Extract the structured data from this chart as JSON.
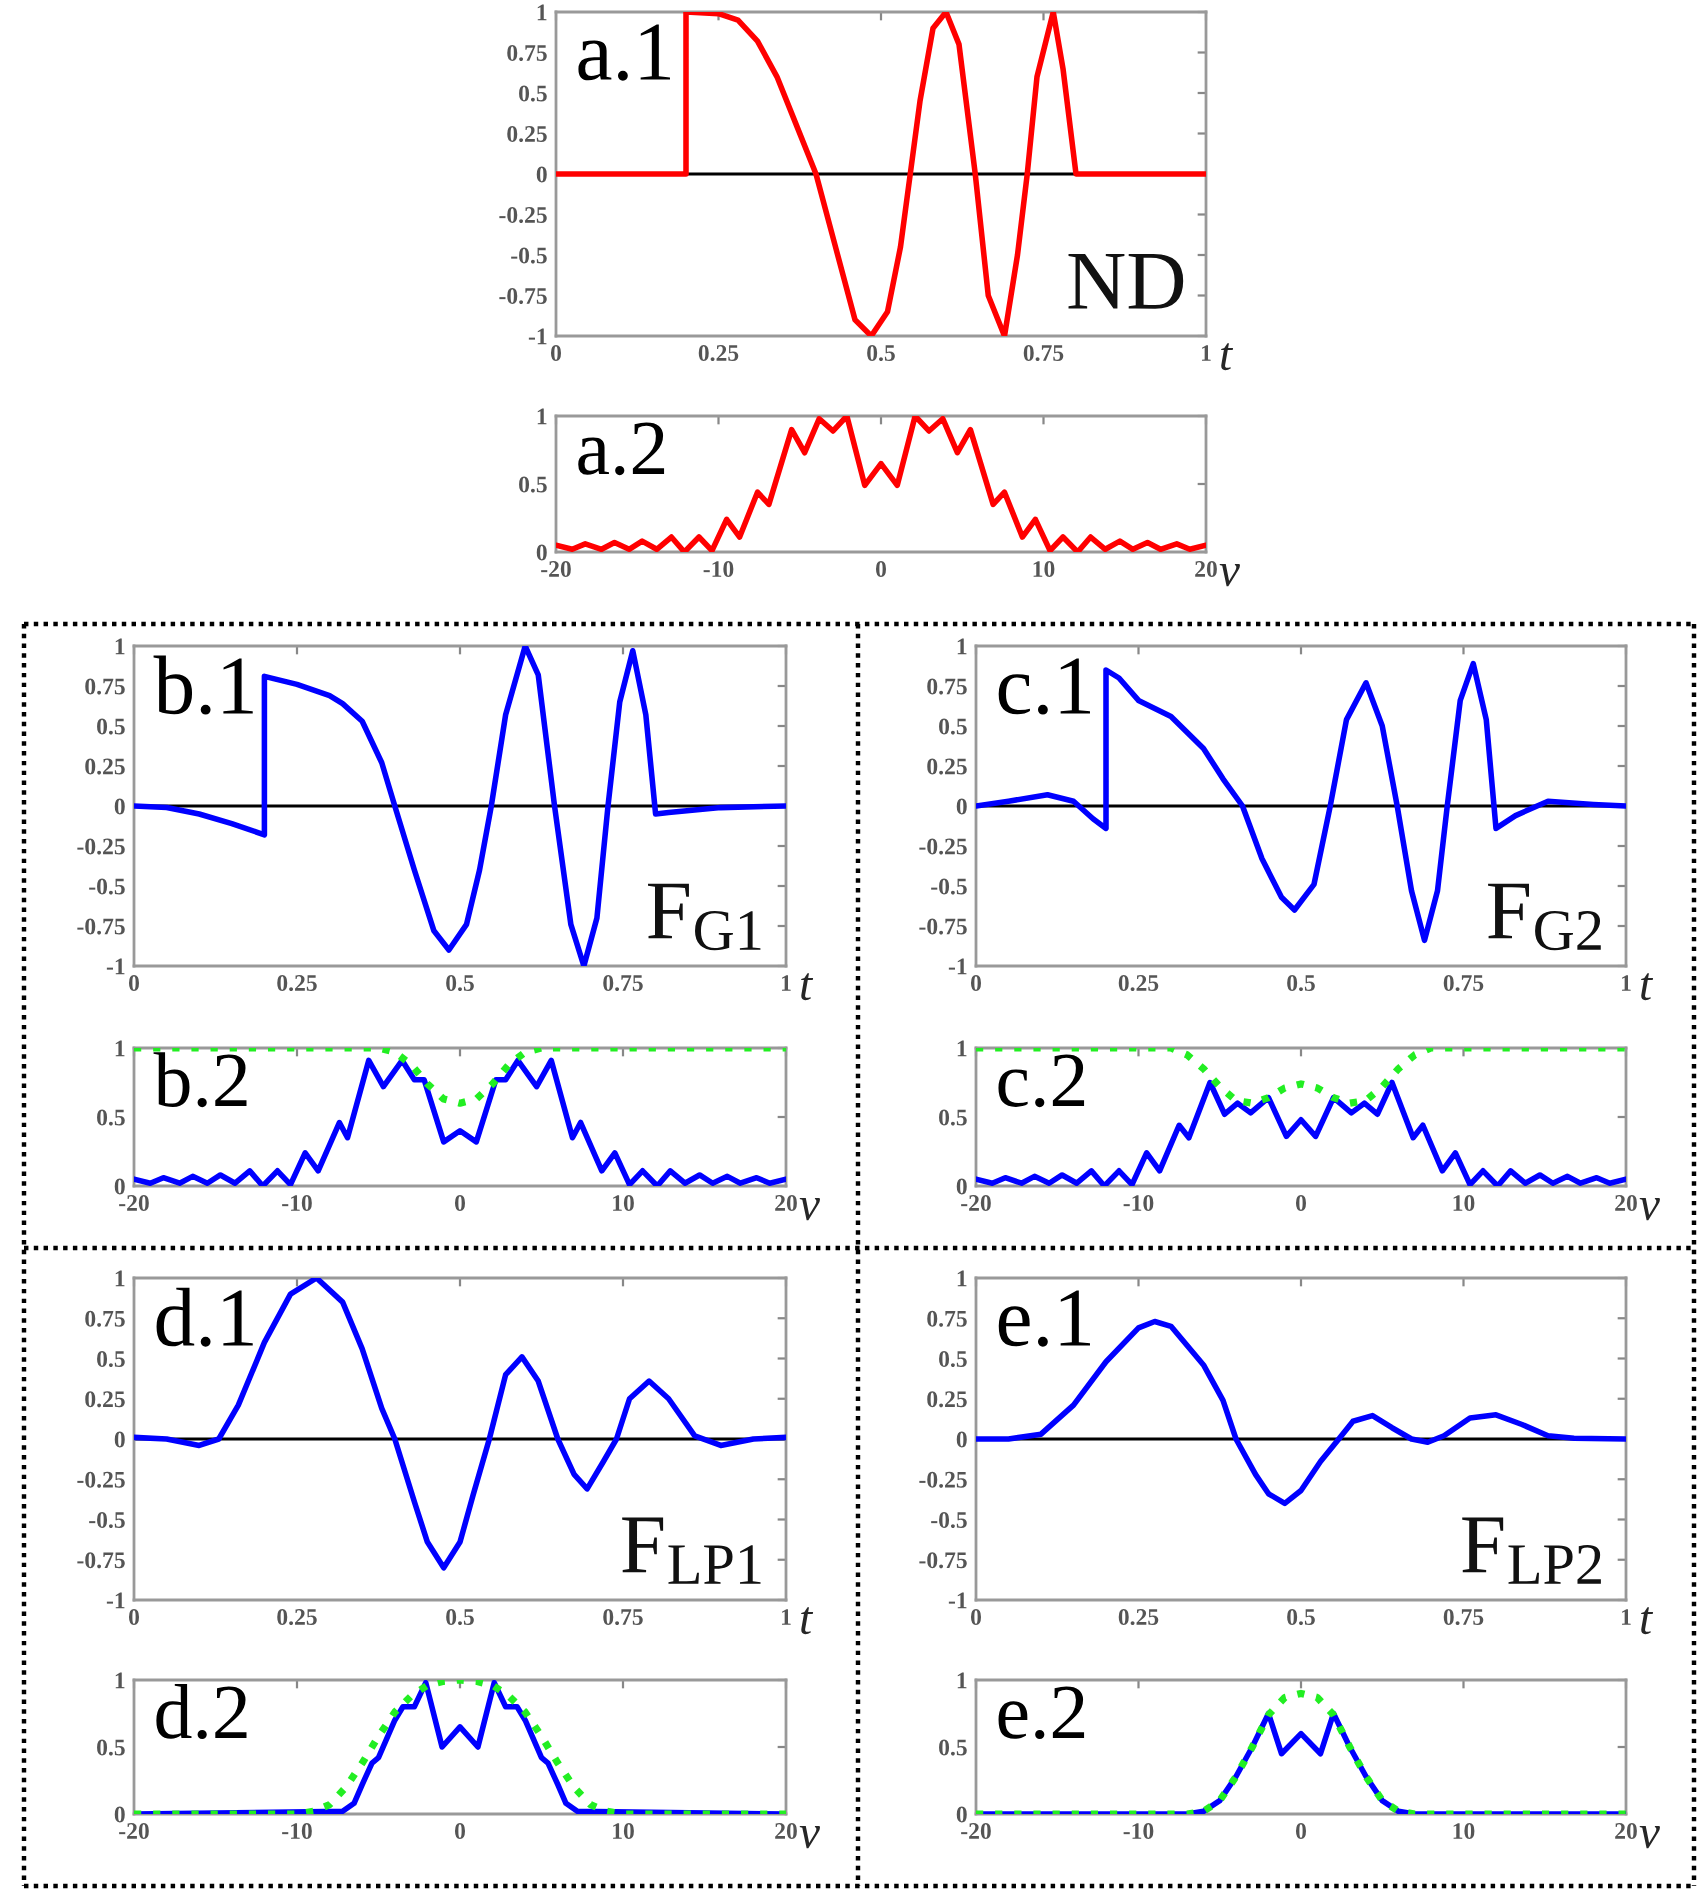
{
  "chart_data": [
    {
      "type": "line",
      "annotations": [
        "a.1",
        "ND"
      ],
      "xlabel": "t",
      "xlim": [
        0,
        1
      ],
      "ylim": [
        -1,
        1
      ],
      "xticks": [
        0,
        0.25,
        0.5,
        0.75,
        1
      ],
      "yticks": [
        -1,
        -0.75,
        -0.5,
        -0.25,
        0,
        0.25,
        0.5,
        0.75,
        1
      ],
      "ref_lines": [
        {
          "axis": "y",
          "value": 0,
          "color": "#000000"
        }
      ],
      "series": [
        {
          "color": "#ff0000",
          "line_style": "solid",
          "x": [
            0,
            0.2,
            0.2,
            0.25,
            0.28,
            0.31,
            0.34,
            0.37,
            0.4,
            0.43,
            0.46,
            0.485,
            0.51,
            0.53,
            0.545,
            0.56,
            0.58,
            0.6,
            0.62,
            0.645,
            0.665,
            0.69,
            0.71,
            0.725,
            0.74,
            0.765,
            0.78,
            0.8,
            1
          ],
          "values": [
            0,
            0,
            1,
            0.99,
            0.95,
            0.82,
            0.6,
            0.3,
            0,
            -0.45,
            -0.9,
            -1,
            -0.85,
            -0.45,
            0,
            0.45,
            0.9,
            1,
            0.8,
            0,
            -0.75,
            -1,
            -0.5,
            0,
            0.6,
            1,
            0.65,
            0,
            0
          ]
        }
      ]
    },
    {
      "type": "line",
      "annotations": [
        "a.2"
      ],
      "xlabel": "ν",
      "xlim": [
        -20,
        20
      ],
      "ylim": [
        0,
        1
      ],
      "xticks": [
        -20,
        -10,
        0,
        10,
        20
      ],
      "yticks": [
        0,
        0.5,
        1
      ],
      "series": [
        {
          "color": "#ff0000",
          "line_style": "solid",
          "x": [
            -20,
            -19,
            -18.2,
            -17.2,
            -16.4,
            -15.5,
            -14.7,
            -13.8,
            -12.9,
            -12.1,
            -11.2,
            -10.4,
            -9.5,
            -8.7,
            -7.6,
            -6.9,
            -5.5,
            -4.7,
            -3.8,
            -2.95,
            -2.1,
            -1.0,
            0,
            1.0,
            2.1,
            2.95,
            3.8,
            4.7,
            5.5,
            6.9,
            7.6,
            8.7,
            9.5,
            10.4,
            11.2,
            12.1,
            12.9,
            13.8,
            14.7,
            15.5,
            16.4,
            17.2,
            18.2,
            19,
            20
          ],
          "values": [
            0.05,
            0.02,
            0.06,
            0.02,
            0.07,
            0.02,
            0.08,
            0.02,
            0.11,
            0,
            0.11,
            0.01,
            0.24,
            0.11,
            0.44,
            0.35,
            0.9,
            0.73,
            0.98,
            0.89,
            1,
            0.49,
            0.65,
            0.49,
            1,
            0.89,
            0.98,
            0.73,
            0.9,
            0.35,
            0.44,
            0.11,
            0.24,
            0.01,
            0.11,
            0,
            0.11,
            0.02,
            0.08,
            0.02,
            0.07,
            0.02,
            0.06,
            0.02,
            0.05
          ]
        }
      ]
    },
    {
      "type": "line",
      "annotations": [
        "b.1",
        "F$_{G1}$"
      ],
      "xlabel": "t",
      "xlim": [
        0,
        1
      ],
      "ylim": [
        -1,
        1
      ],
      "xticks": [
        0,
        0.25,
        0.5,
        0.75,
        1
      ],
      "yticks": [
        -1,
        -0.75,
        -0.5,
        -0.25,
        0,
        0.25,
        0.5,
        0.75,
        1
      ],
      "ref_lines": [
        {
          "axis": "y",
          "value": 0,
          "color": "#000000"
        }
      ],
      "series": [
        {
          "color": "#0000ff",
          "line_style": "solid",
          "x": [
            0,
            0.05,
            0.1,
            0.15,
            0.2,
            0.2,
            0.25,
            0.3,
            0.32,
            0.35,
            0.38,
            0.4,
            0.43,
            0.46,
            0.483,
            0.51,
            0.53,
            0.548,
            0.57,
            0.6,
            0.62,
            0.645,
            0.67,
            0.69,
            0.71,
            0.727,
            0.745,
            0.765,
            0.785,
            0.8,
            0.82,
            0.9,
            1
          ],
          "values": [
            0,
            -0.01,
            -0.05,
            -0.11,
            -0.18,
            0.81,
            0.76,
            0.69,
            0.64,
            0.53,
            0.27,
            0,
            -0.4,
            -0.78,
            -0.9,
            -0.74,
            -0.4,
            0,
            0.57,
            1,
            0.82,
            0,
            -0.74,
            -1,
            -0.7,
            0,
            0.65,
            0.97,
            0.57,
            -0.05,
            -0.04,
            -0.01,
            0
          ]
        }
      ]
    },
    {
      "type": "line",
      "annotations": [
        "b.2"
      ],
      "xlabel": "ν",
      "xlim": [
        -20,
        20
      ],
      "ylim": [
        0,
        1
      ],
      "xticks": [
        -20,
        -10,
        0,
        10,
        20
      ],
      "yticks": [
        0,
        0.5,
        1
      ],
      "series": [
        {
          "color": "#0000ff",
          "line_style": "solid",
          "x": [
            -20,
            -19,
            -18.2,
            -17.2,
            -16.4,
            -15.5,
            -14.7,
            -13.8,
            -12.9,
            -12.1,
            -11.2,
            -10.4,
            -9.5,
            -8.7,
            -7.4,
            -6.9,
            -5.6,
            -4.7,
            -3.55,
            -2.8,
            -2.2,
            -1.0,
            0,
            1.0,
            2.2,
            2.8,
            3.55,
            4.7,
            5.6,
            6.9,
            7.4,
            8.7,
            9.5,
            10.4,
            11.2,
            12.1,
            12.9,
            13.8,
            14.7,
            15.5,
            16.4,
            17.2,
            18.2,
            19,
            20
          ],
          "values": [
            0.05,
            0.02,
            0.06,
            0.02,
            0.07,
            0.02,
            0.08,
            0.02,
            0.11,
            0,
            0.11,
            0.01,
            0.24,
            0.11,
            0.46,
            0.35,
            0.91,
            0.72,
            0.91,
            0.77,
            0.77,
            0.32,
            0.4,
            0.32,
            0.77,
            0.77,
            0.91,
            0.72,
            0.91,
            0.35,
            0.46,
            0.11,
            0.24,
            0.01,
            0.11,
            0,
            0.11,
            0.02,
            0.08,
            0.02,
            0.07,
            0.02,
            0.06,
            0.02,
            0.05
          ]
        },
        {
          "color": "#22ee22",
          "line_style": "dotted",
          "x": [
            -20,
            -5,
            -4,
            -3,
            -2,
            -1,
            0,
            1,
            2,
            3,
            4,
            5,
            20
          ],
          "values": [
            1,
            1,
            0.97,
            0.88,
            0.74,
            0.63,
            0.6,
            0.63,
            0.74,
            0.88,
            0.97,
            1,
            1
          ]
        }
      ]
    },
    {
      "type": "line",
      "annotations": [
        "c.1",
        "F$_{G2}$"
      ],
      "xlabel": "t",
      "xlim": [
        0,
        1
      ],
      "ylim": [
        -1,
        1
      ],
      "xticks": [
        0,
        0.25,
        0.5,
        0.75,
        1
      ],
      "yticks": [
        -1,
        -0.75,
        -0.5,
        -0.25,
        0,
        0.25,
        0.5,
        0.75,
        1
      ],
      "ref_lines": [
        {
          "axis": "y",
          "value": 0,
          "color": "#000000"
        }
      ],
      "series": [
        {
          "color": "#0000ff",
          "line_style": "solid",
          "x": [
            0,
            0.05,
            0.11,
            0.15,
            0.18,
            0.2,
            0.2,
            0.22,
            0.25,
            0.3,
            0.35,
            0.38,
            0.41,
            0.44,
            0.47,
            0.49,
            0.52,
            0.545,
            0.57,
            0.6,
            0.625,
            0.648,
            0.67,
            0.69,
            0.71,
            0.725,
            0.745,
            0.765,
            0.785,
            0.8,
            0.83,
            0.88,
            0.95,
            1
          ],
          "values": [
            0,
            0.03,
            0.07,
            0.03,
            -0.08,
            -0.14,
            0.85,
            0.8,
            0.66,
            0.56,
            0.36,
            0.17,
            0,
            -0.33,
            -0.57,
            -0.65,
            -0.49,
            0,
            0.54,
            0.77,
            0.5,
            0,
            -0.53,
            -0.84,
            -0.53,
            0,
            0.66,
            0.89,
            0.54,
            -0.14,
            -0.06,
            0.03,
            0.01,
            0
          ]
        }
      ]
    },
    {
      "type": "line",
      "annotations": [
        "c.2"
      ],
      "xlabel": "ν",
      "xlim": [
        -20,
        20
      ],
      "ylim": [
        0,
        1
      ],
      "xticks": [
        -20,
        -10,
        0,
        10,
        20
      ],
      "yticks": [
        0,
        0.5,
        1
      ],
      "series": [
        {
          "color": "#0000ff",
          "line_style": "solid",
          "x": [
            -20,
            -19,
            -18.2,
            -17.2,
            -16.4,
            -15.5,
            -14.7,
            -13.8,
            -12.9,
            -12.1,
            -11.2,
            -10.4,
            -9.5,
            -8.7,
            -7.5,
            -6.9,
            -5.6,
            -4.7,
            -3.9,
            -3.1,
            -2.0,
            -0.9,
            0,
            0.9,
            2.0,
            3.1,
            3.9,
            4.7,
            5.6,
            6.9,
            7.5,
            8.7,
            9.5,
            10.4,
            11.2,
            12.1,
            12.9,
            13.8,
            14.7,
            15.5,
            16.4,
            17.2,
            18.2,
            19,
            20
          ],
          "values": [
            0.05,
            0.02,
            0.06,
            0.02,
            0.07,
            0.02,
            0.08,
            0.02,
            0.11,
            0,
            0.11,
            0.01,
            0.24,
            0.11,
            0.44,
            0.35,
            0.75,
            0.52,
            0.6,
            0.53,
            0.64,
            0.36,
            0.48,
            0.36,
            0.64,
            0.53,
            0.6,
            0.52,
            0.75,
            0.35,
            0.44,
            0.11,
            0.24,
            0.01,
            0.11,
            0,
            0.11,
            0.02,
            0.08,
            0.02,
            0.07,
            0.02,
            0.06,
            0.02,
            0.05
          ]
        },
        {
          "color": "#22ee22",
          "line_style": "dotted",
          "x": [
            -20,
            -8,
            -7,
            -6,
            -5,
            -4,
            -3,
            -2,
            -1,
            0,
            1,
            2,
            3,
            4,
            5,
            6,
            7,
            8,
            20
          ],
          "values": [
            1,
            1,
            0.95,
            0.85,
            0.72,
            0.62,
            0.6,
            0.64,
            0.71,
            0.74,
            0.71,
            0.64,
            0.6,
            0.62,
            0.72,
            0.85,
            0.95,
            1,
            1
          ]
        }
      ]
    },
    {
      "type": "line",
      "annotations": [
        "d.1",
        "F$_{LP1}$"
      ],
      "xlabel": "t",
      "xlim": [
        0,
        1
      ],
      "ylim": [
        -1,
        1
      ],
      "xticks": [
        0,
        0.25,
        0.5,
        0.75,
        1
      ],
      "yticks": [
        -1,
        -0.75,
        -0.5,
        -0.25,
        0,
        0.25,
        0.5,
        0.75,
        1
      ],
      "ref_lines": [
        {
          "axis": "y",
          "value": 0,
          "color": "#000000"
        }
      ],
      "series": [
        {
          "color": "#0000ff",
          "line_style": "solid",
          "x": [
            0,
            0.05,
            0.1,
            0.13,
            0.16,
            0.2,
            0.24,
            0.28,
            0.32,
            0.35,
            0.38,
            0.4,
            0.43,
            0.45,
            0.475,
            0.5,
            0.52,
            0.545,
            0.57,
            0.595,
            0.62,
            0.65,
            0.675,
            0.695,
            0.72,
            0.74,
            0.76,
            0.79,
            0.82,
            0.86,
            0.9,
            0.95,
            1
          ],
          "values": [
            0.01,
            0,
            -0.04,
            0,
            0.21,
            0.6,
            0.9,
            1,
            0.85,
            0.56,
            0.19,
            0,
            -0.39,
            -0.64,
            -0.8,
            -0.64,
            -0.35,
            0,
            0.4,
            0.51,
            0.36,
            0,
            -0.22,
            -0.31,
            -0.14,
            0,
            0.25,
            0.36,
            0.25,
            0.02,
            -0.04,
            0,
            0.01
          ]
        }
      ]
    },
    {
      "type": "line",
      "annotations": [
        "d.2"
      ],
      "xlabel": "ν",
      "xlim": [
        -20,
        20
      ],
      "ylim": [
        0,
        1
      ],
      "xticks": [
        -20,
        -10,
        0,
        10,
        20
      ],
      "yticks": [
        0,
        0.5,
        1
      ],
      "series": [
        {
          "color": "#0000ff",
          "line_style": "solid",
          "x": [
            -20,
            -7.2,
            -6.5,
            -6.0,
            -5.4,
            -5.0,
            -4.0,
            -3.5,
            -2.8,
            -2.1,
            -1.1,
            0,
            1.1,
            2.1,
            2.8,
            3.5,
            4.0,
            5.0,
            5.4,
            6.0,
            6.5,
            7.2,
            20
          ],
          "values": [
            0,
            0.02,
            0.08,
            0.22,
            0.38,
            0.42,
            0.7,
            0.8,
            0.8,
            0.98,
            0.5,
            0.65,
            0.5,
            0.98,
            0.8,
            0.8,
            0.7,
            0.42,
            0.38,
            0.22,
            0.08,
            0.02,
            0
          ]
        },
        {
          "color": "#22ee22",
          "line_style": "dotted",
          "x": [
            -20,
            -10,
            -9,
            -8,
            -7,
            -6,
            -5,
            -4,
            -3,
            -2,
            -1,
            0,
            1,
            2,
            3,
            4,
            5,
            6,
            7,
            8,
            9,
            10,
            20
          ],
          "values": [
            0,
            0,
            0.02,
            0.07,
            0.2,
            0.38,
            0.58,
            0.76,
            0.88,
            0.96,
            0.99,
            1,
            0.99,
            0.96,
            0.88,
            0.76,
            0.58,
            0.38,
            0.2,
            0.07,
            0.02,
            0,
            0
          ]
        }
      ]
    },
    {
      "type": "line",
      "annotations": [
        "e.1",
        "F$_{LP2}$"
      ],
      "xlabel": "t",
      "xlim": [
        0,
        1
      ],
      "ylim": [
        -1,
        1
      ],
      "xticks": [
        0,
        0.25,
        0.5,
        0.75,
        1
      ],
      "yticks": [
        -1,
        -0.75,
        -0.5,
        -0.25,
        0,
        0.25,
        0.5,
        0.75,
        1
      ],
      "ref_lines": [
        {
          "axis": "y",
          "value": 0,
          "color": "#000000"
        }
      ],
      "series": [
        {
          "color": "#0000ff",
          "line_style": "solid",
          "x": [
            0,
            0.05,
            0.1,
            0.15,
            0.2,
            0.25,
            0.275,
            0.3,
            0.35,
            0.38,
            0.4,
            0.43,
            0.45,
            0.475,
            0.5,
            0.53,
            0.56,
            0.58,
            0.61,
            0.64,
            0.67,
            0.695,
            0.72,
            0.76,
            0.8,
            0.84,
            0.88,
            0.92,
            1
          ],
          "values": [
            0,
            0,
            0.03,
            0.21,
            0.48,
            0.69,
            0.73,
            0.7,
            0.46,
            0.24,
            0,
            -0.22,
            -0.34,
            -0.4,
            -0.32,
            -0.14,
            0.01,
            0.11,
            0.145,
            0.07,
            0,
            -0.02,
            0.02,
            0.13,
            0.15,
            0.09,
            0.02,
            0.005,
            0
          ]
        }
      ]
    },
    {
      "type": "line",
      "annotations": [
        "e.2"
      ],
      "xlabel": "ν",
      "xlim": [
        -20,
        20
      ],
      "ylim": [
        0,
        1
      ],
      "xticks": [
        -20,
        -10,
        0,
        10,
        20
      ],
      "yticks": [
        0,
        0.5,
        1
      ],
      "series": [
        {
          "color": "#0000ff",
          "line_style": "solid",
          "x": [
            -20,
            -7,
            -6,
            -5,
            -4,
            -3,
            -2,
            -1.2,
            0,
            1.2,
            2,
            3,
            4,
            5,
            6,
            7,
            20
          ],
          "values": [
            0,
            0,
            0.02,
            0.1,
            0.28,
            0.5,
            0.75,
            0.45,
            0.6,
            0.45,
            0.75,
            0.5,
            0.28,
            0.1,
            0.02,
            0,
            0
          ]
        },
        {
          "color": "#22ee22",
          "line_style": "dotted",
          "x": [
            -20,
            -7,
            -6,
            -5,
            -4,
            -3,
            -2,
            -1,
            0,
            1,
            2,
            3,
            4,
            5,
            6,
            7,
            20
          ],
          "values": [
            0,
            0,
            0.02,
            0.1,
            0.28,
            0.5,
            0.74,
            0.87,
            0.9,
            0.87,
            0.74,
            0.5,
            0.28,
            0.1,
            0.02,
            0,
            0
          ]
        }
      ]
    }
  ]
}
